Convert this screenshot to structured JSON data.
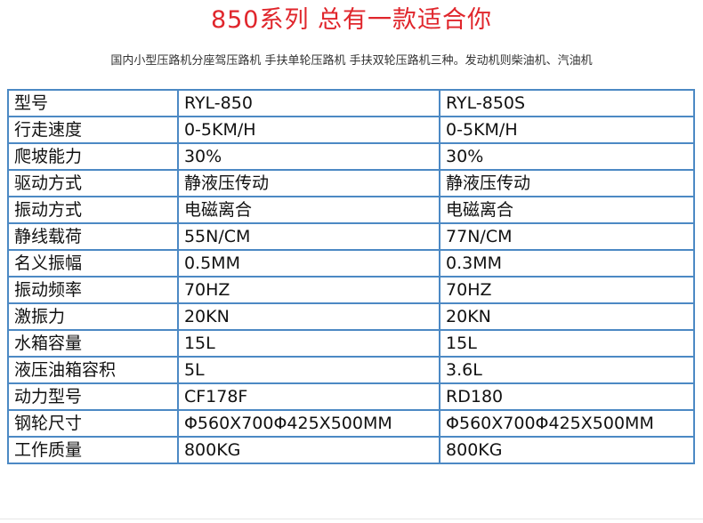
{
  "header": {
    "title": "850系列  总有一款适合你",
    "subtitle": "国内小型压路机分座驾压路机 手扶单轮压路机 手扶双轮压路机三种。发动机则柴油机、汽油机"
  },
  "table": {
    "rows": [
      [
        "型号",
        "RYL-850",
        "RYL-850S"
      ],
      [
        "行走速度",
        "0-5KM/H",
        "0-5KM/H"
      ],
      [
        "爬坡能力",
        "30%",
        "30%"
      ],
      [
        "驱动方式",
        "静液压传动",
        "静液压传动"
      ],
      [
        "振动方式",
        "电磁离合",
        "电磁离合"
      ],
      [
        "静线载荷",
        "55N/CM",
        "77N/CM"
      ],
      [
        "名义振幅",
        "0.5MM",
        "0.3MM"
      ],
      [
        "振动频率",
        "70HZ",
        "70HZ"
      ],
      [
        "激振力",
        "20KN",
        "20KN"
      ],
      [
        "水箱容量",
        "15L",
        "15L"
      ],
      [
        "液压油箱容积",
        " 5L",
        "3.6L"
      ],
      [
        "动力型号",
        "CF178F",
        "RD180"
      ],
      [
        "钢轮尺寸",
        "Φ560X700Φ425X500MM",
        "Φ560X700Φ425X500MM"
      ],
      [
        "工作质量",
        "800KG",
        "800KG"
      ]
    ]
  },
  "colors": {
    "title": "#e0262c",
    "border": "#4c89c4"
  }
}
